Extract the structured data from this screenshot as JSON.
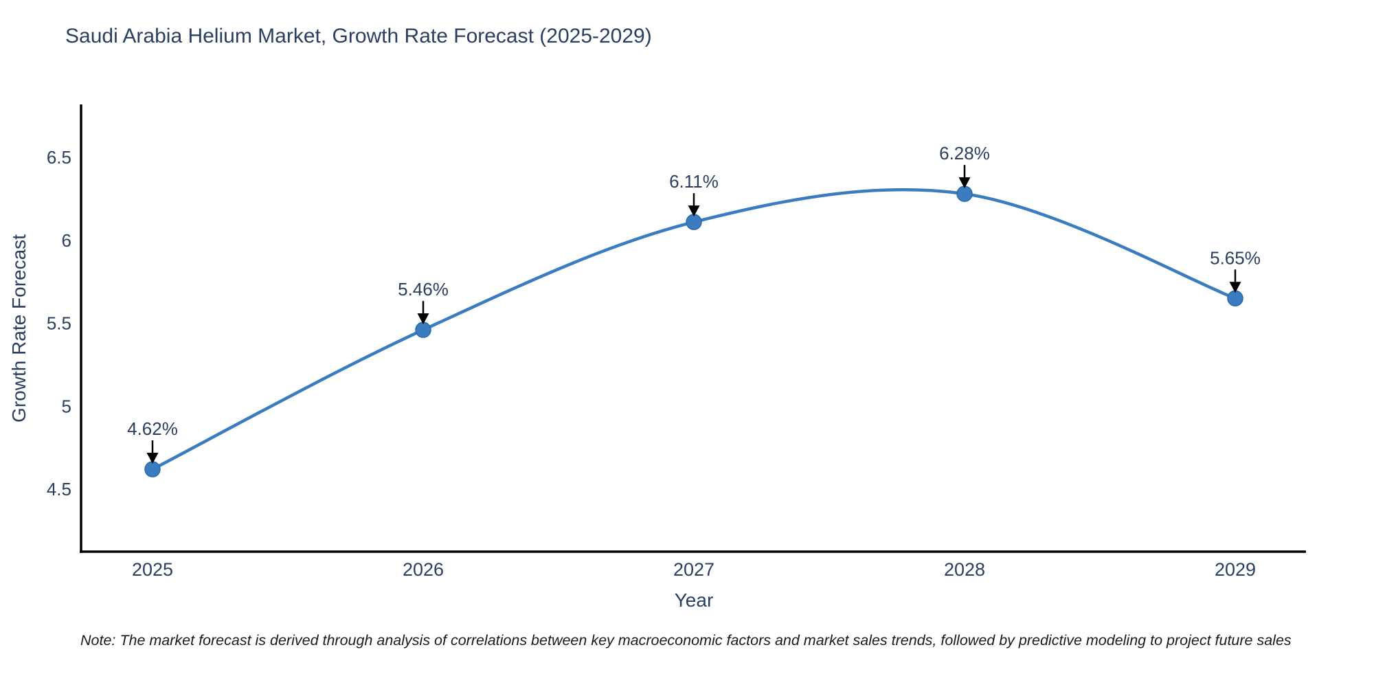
{
  "header": {
    "title": "Saudi Arabia Helium Market, Growth Rate Forecast (2025-2029)"
  },
  "footnote": "Note: The market forecast is derived through analysis of correlations between key macroeconomic factors and market sales trends, followed by predictive modeling to project future sales",
  "chart_data": {
    "type": "line",
    "title": "Saudi Arabia Helium Market, Growth Rate Forecast (2025-2029)",
    "xlabel": "Year",
    "ylabel": "Growth Rate Forecast",
    "categories": [
      "2025",
      "2026",
      "2027",
      "2028",
      "2029"
    ],
    "values": [
      4.62,
      5.46,
      6.11,
      6.28,
      5.65
    ],
    "point_labels": [
      "4.62%",
      "5.46%",
      "6.11%",
      "6.28%",
      "5.65%"
    ],
    "yticks": [
      4.5,
      5.0,
      5.5,
      6.0,
      6.5
    ],
    "ylim": [
      4.12,
      6.82
    ],
    "line_shape": "spline",
    "grid": "off",
    "legend": "none",
    "annotations_style": "value label with downward black arrow onto each marker",
    "colors": {
      "line": "#3a7cbf",
      "marker_fill": "#3a7cbf",
      "marker_edge": "#2a6aa5",
      "arrow": "#000000",
      "axis_line": "#000000",
      "tick_text": "#2a3f5f",
      "annotation_text": "#2a3f5f",
      "title_text": "#2a3f5f",
      "note_text": "#1a1a1a",
      "background": "#ffffff"
    }
  }
}
